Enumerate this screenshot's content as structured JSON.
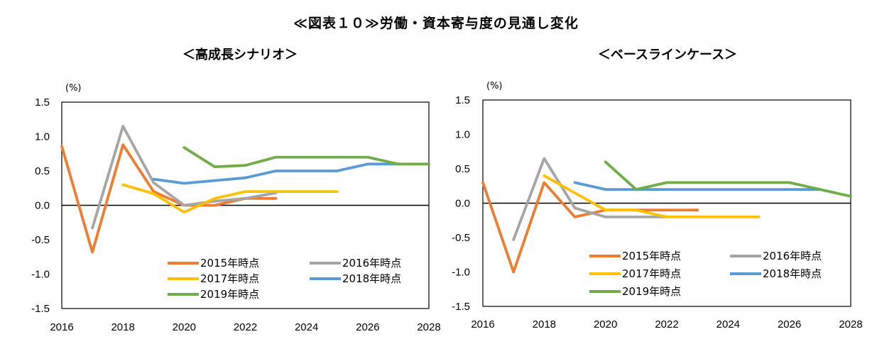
{
  "title": "≪図表１０≫労働・資本寄与度の見通し変化",
  "chart_data": [
    {
      "type": "line",
      "title": "＜高成長シナリオ＞",
      "ylabel": "(%)",
      "xlim": [
        2016,
        2028
      ],
      "ylim": [
        -1.5,
        1.5
      ],
      "xticks": [
        "2016",
        "2018",
        "2020",
        "2022",
        "2024",
        "2026",
        "2028"
      ],
      "yticks": [
        "1.5",
        "1.0",
        "0.5",
        "0.0",
        "-0.5",
        "-1.0",
        "-1.5"
      ],
      "grid": false,
      "legend_position": "bottom-inside",
      "series": [
        {
          "name": "2015年時点",
          "color": "#ED7D31",
          "x": [
            2016,
            2017,
            2018,
            2019,
            2020,
            2021,
            2022,
            2023
          ],
          "values": [
            0.86,
            -0.68,
            0.88,
            0.2,
            0.0,
            0.0,
            0.1,
            0.1
          ]
        },
        {
          "name": "2016年時点",
          "color": "#A5A5A5",
          "x": [
            2017,
            2018,
            2019,
            2020,
            2021,
            2022,
            2023
          ],
          "values": [
            -0.33,
            1.15,
            0.33,
            0.0,
            0.06,
            0.1,
            0.18
          ]
        },
        {
          "name": "2017年時点",
          "color": "#FFC000",
          "x": [
            2018,
            2019,
            2020,
            2021,
            2022,
            2023,
            2024,
            2025
          ],
          "values": [
            0.3,
            0.17,
            -0.1,
            0.1,
            0.2,
            0.2,
            0.2,
            0.2
          ]
        },
        {
          "name": "2018年時点",
          "color": "#5B9BD5",
          "x": [
            2019,
            2020,
            2021,
            2022,
            2023,
            2024,
            2025,
            2026,
            2027
          ],
          "values": [
            0.38,
            0.32,
            0.36,
            0.4,
            0.5,
            0.5,
            0.5,
            0.6,
            0.6
          ]
        },
        {
          "name": "2019年時点",
          "color": "#70AD47",
          "x": [
            2020,
            2021,
            2022,
            2023,
            2024,
            2025,
            2026,
            2027,
            2028
          ],
          "values": [
            0.84,
            0.56,
            0.58,
            0.7,
            0.7,
            0.7,
            0.7,
            0.6,
            0.6
          ]
        }
      ]
    },
    {
      "type": "line",
      "title": "＜ベースラインケース＞",
      "ylabel": "(%)",
      "xlim": [
        2016,
        2028
      ],
      "ylim": [
        -1.5,
        1.5
      ],
      "xticks": [
        "2016",
        "2018",
        "2020",
        "2022",
        "2024",
        "2026",
        "2028"
      ],
      "yticks": [
        "1.5",
        "1.0",
        "0.5",
        "0.0",
        "-0.5",
        "-1.0",
        "-1.5"
      ],
      "grid": false,
      "legend_position": "bottom-inside",
      "series": [
        {
          "name": "2015年時点",
          "color": "#ED7D31",
          "x": [
            2016,
            2017,
            2018,
            2019,
            2020,
            2021,
            2022,
            2023
          ],
          "values": [
            0.3,
            -1.0,
            0.3,
            -0.2,
            -0.1,
            -0.1,
            -0.1,
            -0.1
          ]
        },
        {
          "name": "2016年時点",
          "color": "#A5A5A5",
          "x": [
            2017,
            2018,
            2019,
            2020,
            2021,
            2022
          ],
          "values": [
            -0.53,
            0.65,
            -0.07,
            -0.2,
            -0.2,
            -0.2
          ]
        },
        {
          "name": "2017年時点",
          "color": "#FFC000",
          "x": [
            2018,
            2019,
            2020,
            2021,
            2022,
            2023,
            2024,
            2025
          ],
          "values": [
            0.4,
            0.15,
            -0.1,
            -0.1,
            -0.2,
            -0.2,
            -0.2,
            -0.2
          ]
        },
        {
          "name": "2018年時点",
          "color": "#5B9BD5",
          "x": [
            2019,
            2020,
            2021,
            2022,
            2023,
            2024,
            2025,
            2026,
            2027
          ],
          "values": [
            0.3,
            0.2,
            0.2,
            0.2,
            0.2,
            0.2,
            0.2,
            0.2,
            0.2
          ]
        },
        {
          "name": "2019年時点",
          "color": "#70AD47",
          "x": [
            2020,
            2021,
            2022,
            2023,
            2024,
            2025,
            2026,
            2027,
            2028
          ],
          "values": [
            0.6,
            0.2,
            0.3,
            0.3,
            0.3,
            0.3,
            0.3,
            0.2,
            0.1
          ]
        }
      ]
    }
  ]
}
